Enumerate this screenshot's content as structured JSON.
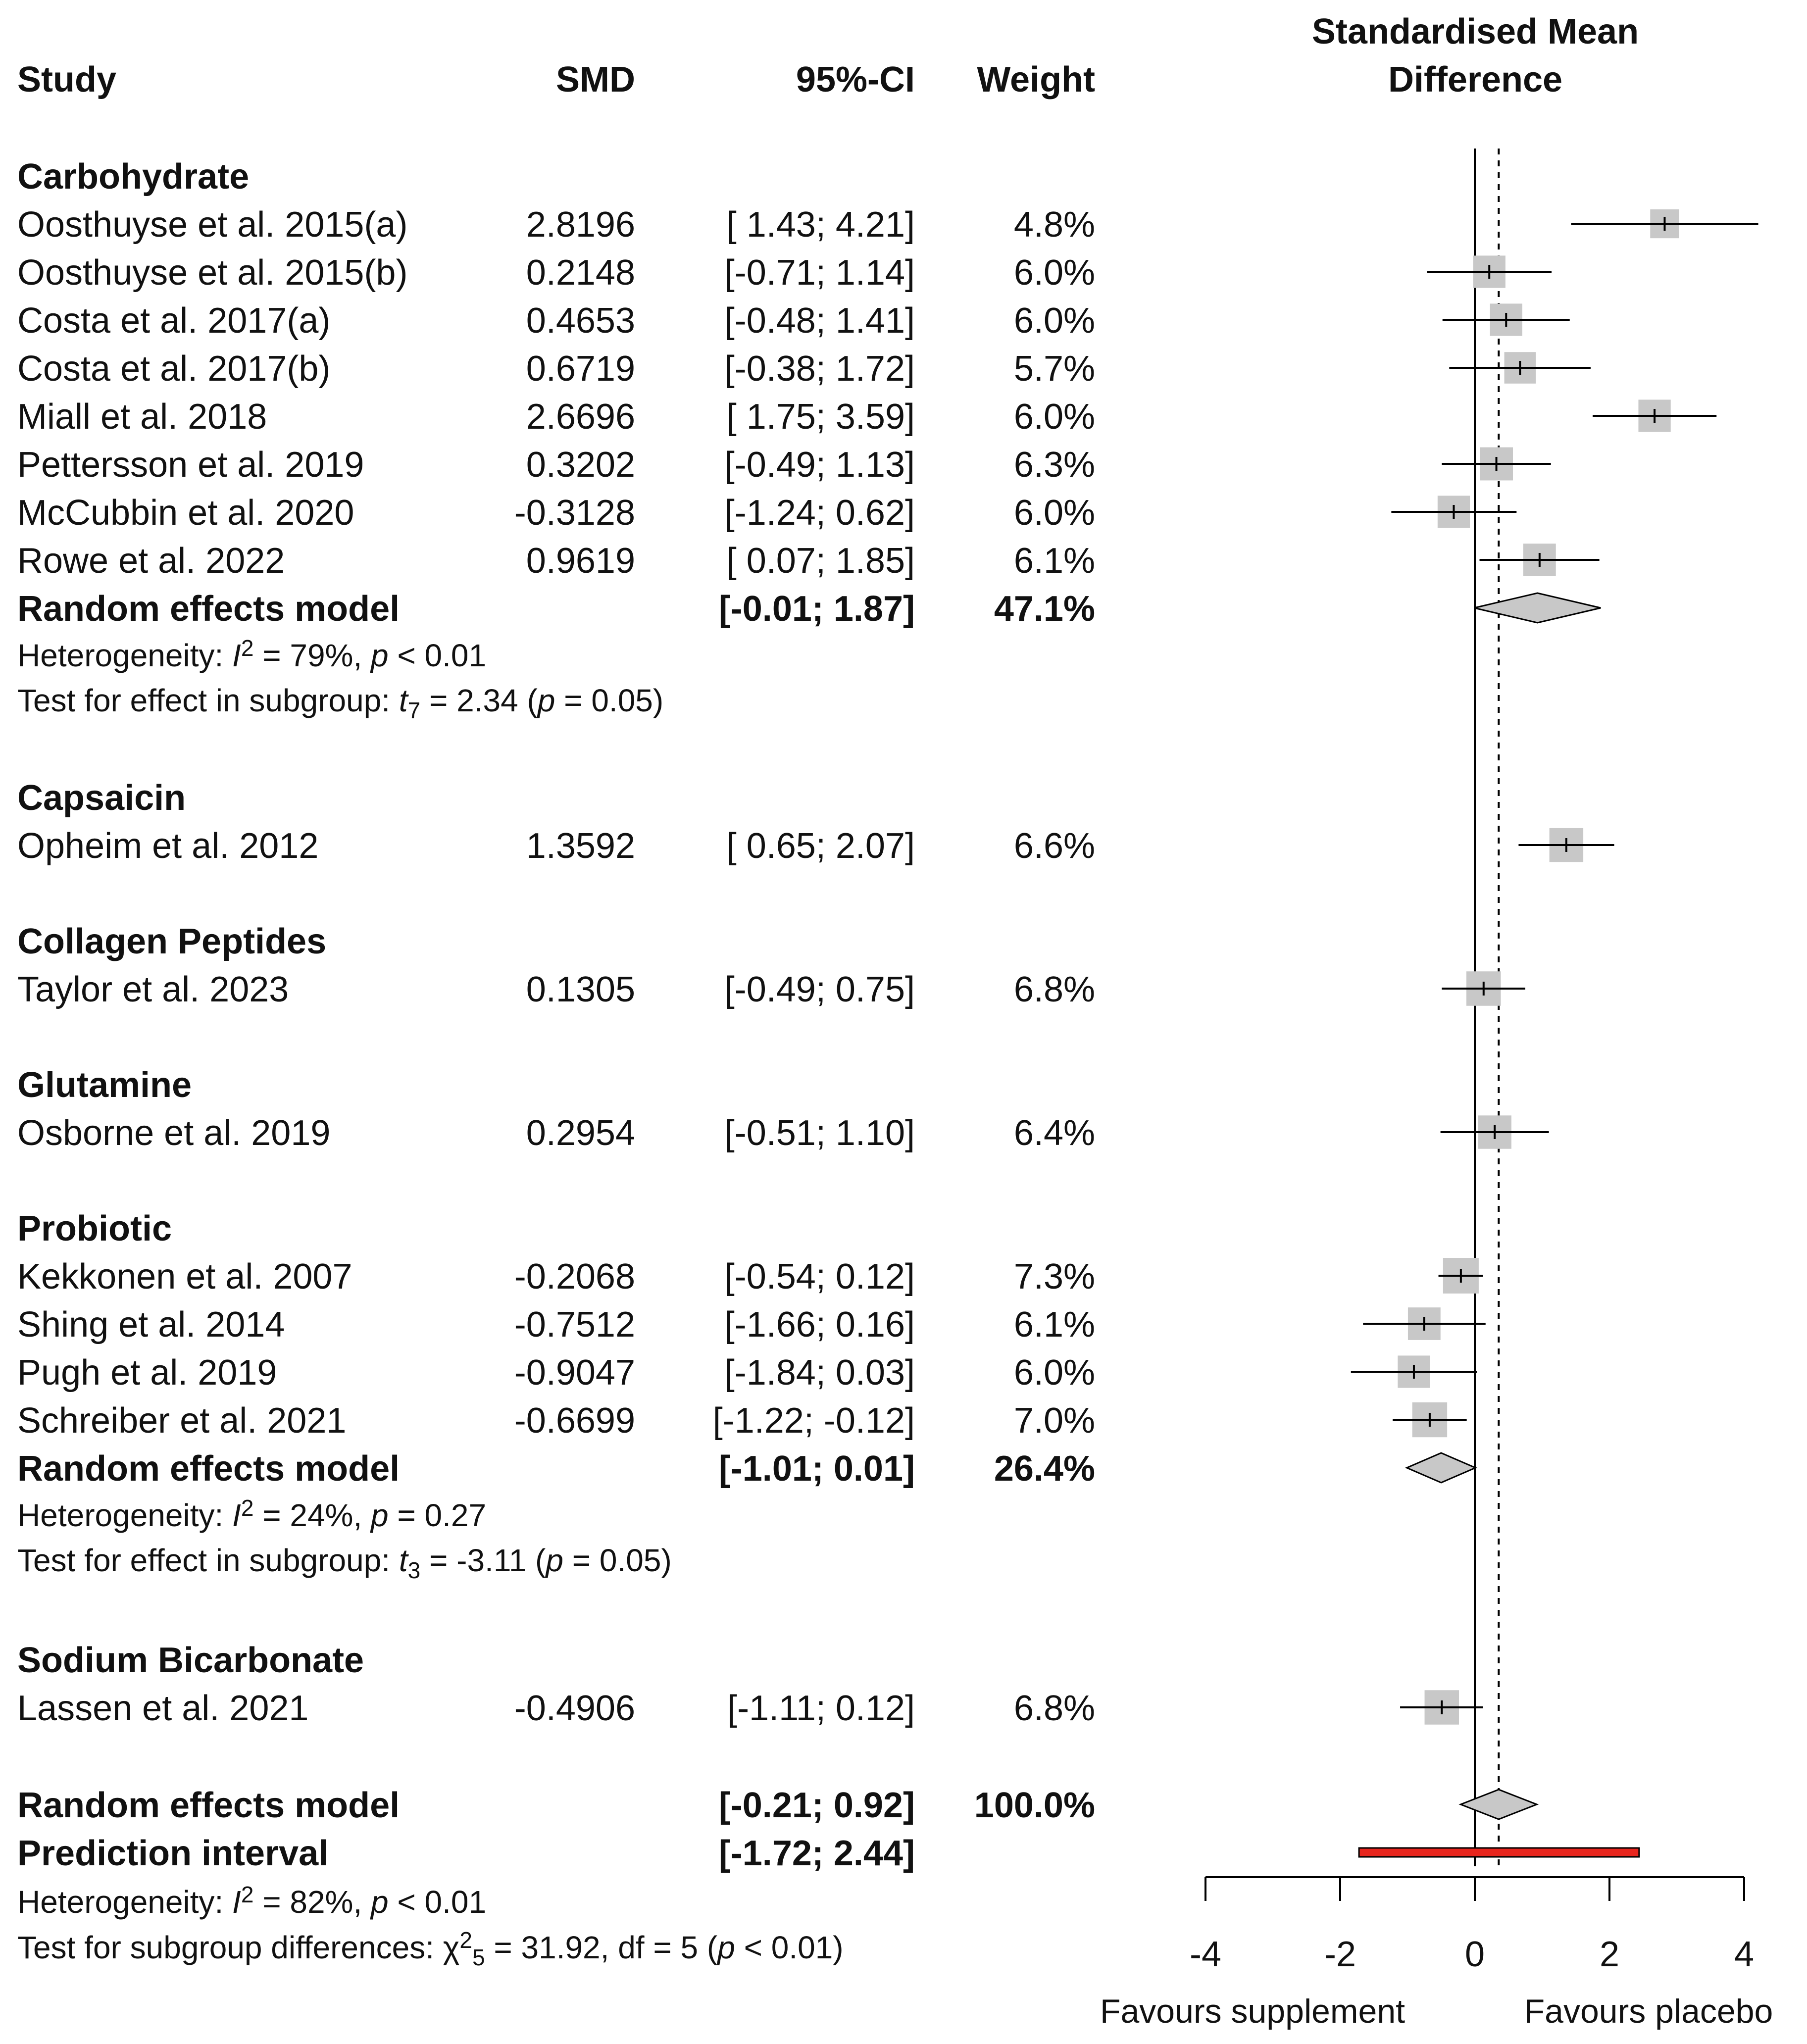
{
  "chart_data": {
    "type": "forest",
    "effect_measure": "Standardised Mean Difference",
    "columns": {
      "study": "Study",
      "smd": "SMD",
      "ci": "95%-CI",
      "weight": "Weight"
    },
    "axis_title_line1": "Standardised Mean",
    "axis_title_line2": "Difference",
    "xlim": [
      -4,
      4
    ],
    "xticks": [
      -4,
      -2,
      0,
      2,
      4
    ],
    "xtick_labels": [
      "-4",
      "-2",
      "0",
      "2",
      "4"
    ],
    "favours_left": "Favours supplement",
    "favours_right": "Favours placebo",
    "overall_reference": 0.355,
    "groups": [
      {
        "name": "Carbohydrate",
        "studies": [
          {
            "study": "Oosthuyse et al. 2015(a)",
            "smd": 2.8196,
            "smd_label": "2.8196",
            "lower": 1.43,
            "upper": 4.21,
            "ci_label": "[ 1.43;  4.21]",
            "weight": 4.8,
            "weight_label": "4.8%"
          },
          {
            "study": "Oosthuyse et al. 2015(b)",
            "smd": 0.2148,
            "smd_label": "0.2148",
            "lower": -0.71,
            "upper": 1.14,
            "ci_label": "[-0.71;  1.14]",
            "weight": 6.0,
            "weight_label": "6.0%"
          },
          {
            "study": "Costa et al. 2017(a)",
            "smd": 0.4653,
            "smd_label": "0.4653",
            "lower": -0.48,
            "upper": 1.41,
            "ci_label": "[-0.48;  1.41]",
            "weight": 6.0,
            "weight_label": "6.0%"
          },
          {
            "study": "Costa et al. 2017(b)",
            "smd": 0.6719,
            "smd_label": "0.6719",
            "lower": -0.38,
            "upper": 1.72,
            "ci_label": "[-0.38;  1.72]",
            "weight": 5.7,
            "weight_label": "5.7%"
          },
          {
            "study": "Miall et al. 2018",
            "smd": 2.6696,
            "smd_label": "2.6696",
            "lower": 1.75,
            "upper": 3.59,
            "ci_label": "[ 1.75;  3.59]",
            "weight": 6.0,
            "weight_label": "6.0%"
          },
          {
            "study": "Pettersson et al. 2019",
            "smd": 0.3202,
            "smd_label": "0.3202",
            "lower": -0.49,
            "upper": 1.13,
            "ci_label": "[-0.49;  1.13]",
            "weight": 6.3,
            "weight_label": "6.3%"
          },
          {
            "study": "McCubbin et al. 2020",
            "smd": -0.3128,
            "smd_label": "-0.3128",
            "lower": -1.24,
            "upper": 0.62,
            "ci_label": "[-1.24;  0.62]",
            "weight": 6.0,
            "weight_label": "6.0%"
          },
          {
            "study": "Rowe et al. 2022",
            "smd": 0.9619,
            "smd_label": "0.9619",
            "lower": 0.07,
            "upper": 1.85,
            "ci_label": "[ 0.07;  1.85]",
            "weight": 6.1,
            "weight_label": "6.1%"
          }
        ],
        "model": {
          "label": "Random effects model",
          "estimate": 0.93,
          "lower": -0.01,
          "upper": 1.87,
          "ci_label": "[-0.01;  1.87]",
          "weight_label": "47.1%"
        },
        "heterogeneity": {
          "prefix": "Heterogeneity: ",
          "I": "I",
          "sup": "2",
          "rest": " = 79%, ",
          "p": "p",
          "tail": " < 0.01"
        },
        "test": {
          "prefix": "Test for effect in subgroup: ",
          "t": "t",
          "sub": "7",
          "rest": " = 2.34 (",
          "p": "p",
          "tail": " = 0.05)"
        }
      },
      {
        "name": "Capsaicin",
        "studies": [
          {
            "study": "Opheim et al. 2012",
            "smd": 1.3592,
            "smd_label": "1.3592",
            "lower": 0.65,
            "upper": 2.07,
            "ci_label": "[ 0.65;  2.07]",
            "weight": 6.6,
            "weight_label": "6.6%"
          }
        ]
      },
      {
        "name": "Collagen Peptides",
        "studies": [
          {
            "study": "Taylor et al. 2023",
            "smd": 0.1305,
            "smd_label": "0.1305",
            "lower": -0.49,
            "upper": 0.75,
            "ci_label": "[-0.49;  0.75]",
            "weight": 6.8,
            "weight_label": "6.8%"
          }
        ]
      },
      {
        "name": "Glutamine",
        "studies": [
          {
            "study": "Osborne et al. 2019",
            "smd": 0.2954,
            "smd_label": "0.2954",
            "lower": -0.51,
            "upper": 1.1,
            "ci_label": "[-0.51;  1.10]",
            "weight": 6.4,
            "weight_label": "6.4%"
          }
        ]
      },
      {
        "name": "Probiotic",
        "studies": [
          {
            "study": "Kekkonen et al. 2007",
            "smd": -0.2068,
            "smd_label": "-0.2068",
            "lower": -0.54,
            "upper": 0.12,
            "ci_label": "[-0.54;  0.12]",
            "weight": 7.3,
            "weight_label": "7.3%"
          },
          {
            "study": "Shing et al. 2014",
            "smd": -0.7512,
            "smd_label": "-0.7512",
            "lower": -1.66,
            "upper": 0.16,
            "ci_label": "[-1.66;  0.16]",
            "weight": 6.1,
            "weight_label": "6.1%"
          },
          {
            "study": "Pugh et al. 2019",
            "smd": -0.9047,
            "smd_label": "-0.9047",
            "lower": -1.84,
            "upper": 0.03,
            "ci_label": "[-1.84;  0.03]",
            "weight": 6.0,
            "weight_label": "6.0%"
          },
          {
            "study": "Schreiber et al. 2021",
            "smd": -0.6699,
            "smd_label": "-0.6699",
            "lower": -1.22,
            "upper": -0.12,
            "ci_label": "[-1.22; -0.12]",
            "weight": 7.0,
            "weight_label": "7.0%"
          }
        ],
        "model": {
          "label": "Random effects model",
          "estimate": -0.5,
          "lower": -1.01,
          "upper": 0.01,
          "ci_label": "[-1.01;  0.01]",
          "weight_label": "26.4%"
        },
        "heterogeneity": {
          "prefix": "Heterogeneity: ",
          "I": "I",
          "sup": "2",
          "rest": " = 24%, ",
          "p": "p",
          "tail": " = 0.27"
        },
        "test": {
          "prefix": "Test for effect in subgroup: ",
          "t": "t",
          "sub": "3",
          "rest": " = -3.11 (",
          "p": "p",
          "tail": " = 0.05)"
        }
      },
      {
        "name": "Sodium Bicarbonate",
        "studies": [
          {
            "study": "Lassen et al. 2021",
            "smd": -0.4906,
            "smd_label": "-0.4906",
            "lower": -1.11,
            "upper": 0.12,
            "ci_label": "[-1.11;  0.12]",
            "weight": 6.8,
            "weight_label": "6.8%"
          }
        ]
      }
    ],
    "overall": {
      "model": {
        "label": "Random effects model",
        "estimate": 0.355,
        "lower": -0.21,
        "upper": 0.92,
        "ci_label": "[-0.21;  0.92]",
        "weight_label": "100.0%"
      },
      "prediction": {
        "label": "Prediction interval",
        "lower": -1.72,
        "upper": 2.44,
        "ci_label": "[-1.72;  2.44]"
      },
      "heterogeneity": {
        "prefix": "Heterogeneity: ",
        "I": "I",
        "sup": "2",
        "rest": " = 82%, ",
        "p": "p",
        "tail": " < 0.01"
      },
      "test": {
        "prefix": "Test for subgroup differences: ",
        "chi": "χ",
        "sup": "2",
        "sub": "5",
        "rest": " = 31.92, df = 5 (",
        "p": "p",
        "tail": " < 0.01)"
      }
    },
    "colors": {
      "box": "#c8c8c8",
      "diamond": "#c8c8c8",
      "prediction": "#e8251d",
      "line": "#000000"
    }
  }
}
